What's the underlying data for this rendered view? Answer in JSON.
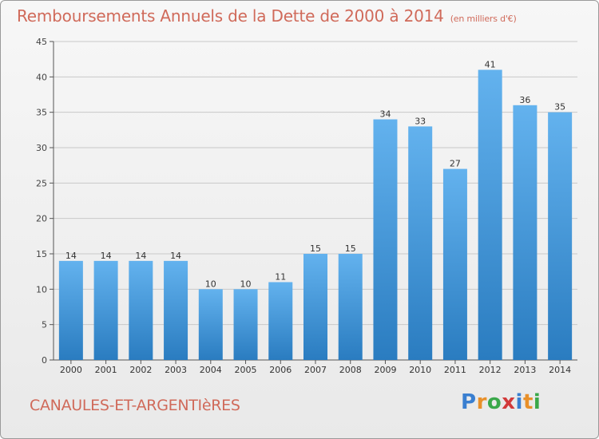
{
  "title": "Remboursements Annuels de la Dette de 2000 à 2014",
  "subtitle": "(en milliers d'€)",
  "commune": "CANAULES-ET-ARGENTIèRES",
  "logo": {
    "letters": [
      "P",
      "r",
      "o",
      "x",
      "i",
      "t",
      "i"
    ],
    "colors": [
      "#3a7fd0",
      "#e8902a",
      "#3aa84a",
      "#d23a3a",
      "#3a7fd0",
      "#e8902a",
      "#3aa84a"
    ]
  },
  "colors": {
    "bar_light": "#63b2ee",
    "bar_dark": "#2a7cc0",
    "axis": "#555555",
    "grid": "#c8c8c8"
  },
  "chart_data": {
    "type": "bar",
    "title": "Remboursements Annuels de la Dette de 2000 à 2014",
    "xlabel": "",
    "ylabel": "",
    "ylim": [
      0,
      45
    ],
    "yticks": [
      0,
      5,
      10,
      15,
      20,
      25,
      30,
      35,
      40,
      45
    ],
    "grid": true,
    "categories": [
      "2000",
      "2001",
      "2002",
      "2003",
      "2004",
      "2005",
      "2006",
      "2007",
      "2008",
      "2009",
      "2010",
      "2011",
      "2012",
      "2013",
      "2014"
    ],
    "values": [
      14,
      14,
      14,
      14,
      10,
      10,
      11,
      15,
      15,
      34,
      33,
      27,
      41,
      36,
      35
    ]
  }
}
